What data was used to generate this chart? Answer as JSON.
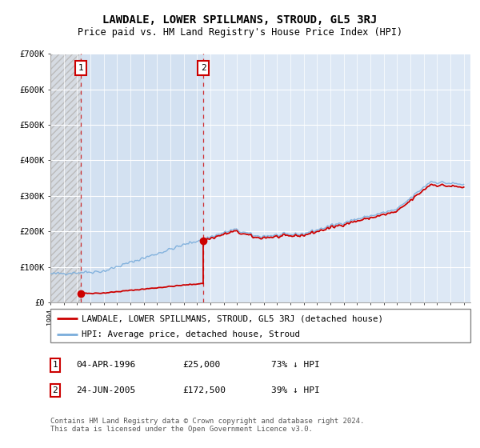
{
  "title": "LAWDALE, LOWER SPILLMANS, STROUD, GL5 3RJ",
  "subtitle": "Price paid vs. HM Land Registry's House Price Index (HPI)",
  "title_fontsize": 10,
  "subtitle_fontsize": 8.5,
  "plot_bg_color": "#dde8f5",
  "hatch_color": "#c8c8c8",
  "blue_region_color": "#dde8f5",
  "sale1_year": 1996.27,
  "sale1_price": 25000,
  "sale2_year": 2005.48,
  "sale2_price": 172500,
  "red_line_color": "#cc0000",
  "blue_line_color": "#7aaddb",
  "ylim": [
    0,
    700000
  ],
  "yticks": [
    0,
    100000,
    200000,
    300000,
    400000,
    500000,
    600000,
    700000
  ],
  "ytick_labels": [
    "£0",
    "£100K",
    "£200K",
    "£300K",
    "£400K",
    "£500K",
    "£600K",
    "£700K"
  ],
  "legend_label_red": "LAWDALE, LOWER SPILLMANS, STROUD, GL5 3RJ (detached house)",
  "legend_label_blue": "HPI: Average price, detached house, Stroud",
  "note1_date": "04-APR-1996",
  "note1_price": "£25,000",
  "note1_hpi": "73% ↓ HPI",
  "note2_date": "24-JUN-2005",
  "note2_price": "£172,500",
  "note2_hpi": "39% ↓ HPI",
  "footer": "Contains HM Land Registry data © Crown copyright and database right 2024.\nThis data is licensed under the Open Government Licence v3.0.",
  "xstart": 1994,
  "xend": 2025,
  "hpi_seed": 42,
  "hpi_base": 80000,
  "hpi_noise_scale": 3000,
  "monthly_points": 372
}
